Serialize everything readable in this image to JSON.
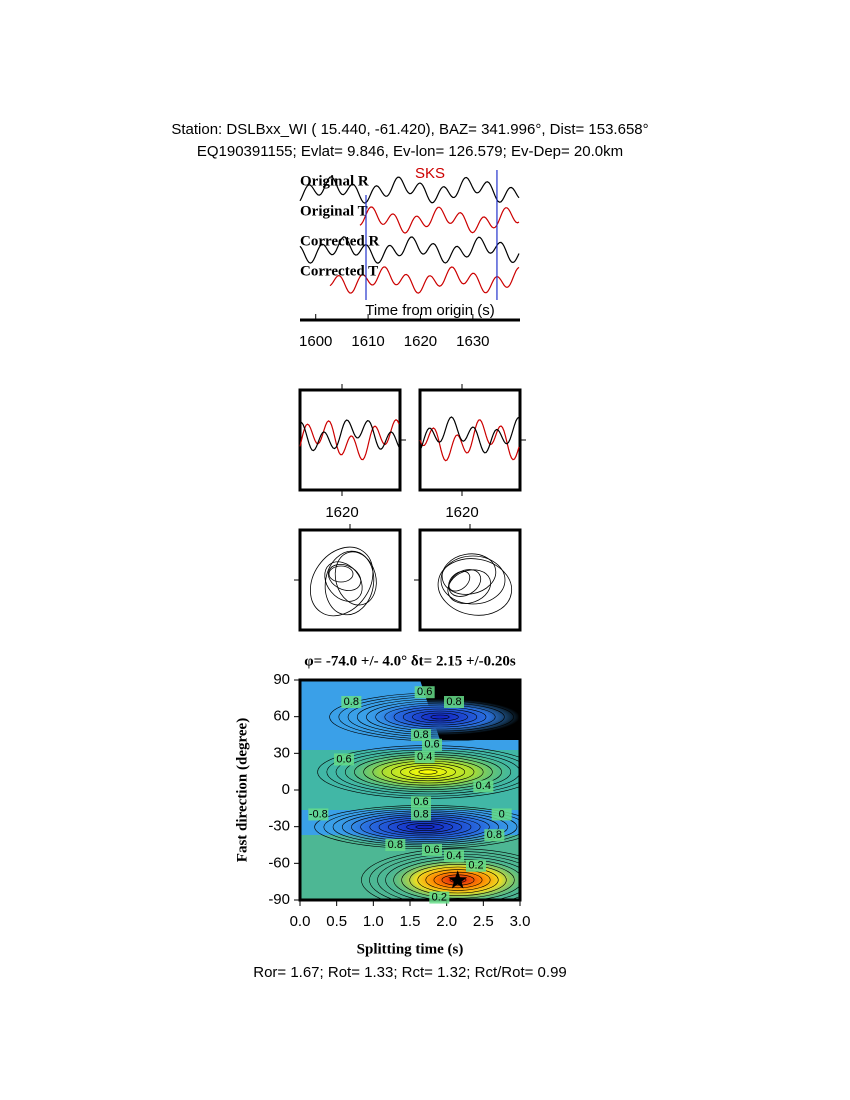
{
  "header": {
    "line1": "Station: DSLBxx_WI (  15.440,  -61.420), BAZ=  341.996°, Dist=  153.658°",
    "line2": "EQ190391155; Evlat=   9.846, Ev-lon= 126.579; Ev-Dep= 20.0km"
  },
  "chart_data": [
    {
      "type": "line",
      "phase": "SKS",
      "xlabel": "Time from origin (s)",
      "xlim": [
        1597,
        1639
      ],
      "xticks": [
        1600,
        1610,
        1620,
        1630
      ],
      "window": [
        1609.6,
        1634.6
      ],
      "series": [
        {
          "name": "Original R",
          "color": "#000000"
        },
        {
          "name": "Original T",
          "color": "#cc0000"
        },
        {
          "name": "Corrected R",
          "color": "#000000"
        },
        {
          "name": "Corrected T",
          "color": "#cc0000"
        }
      ]
    },
    {
      "type": "line",
      "xlim": [
        1611.6,
        1631.6
      ],
      "xticks": [
        1620
      ]
    },
    {
      "type": "line",
      "xlim": [
        1611.6,
        1631.6
      ],
      "xticks": [
        1620
      ]
    },
    {
      "type": "contour",
      "title": "φ= -74.0 +/- 4.0° δt= 2.15 +/-0.20s",
      "xlabel": "Splitting time (s)",
      "ylabel": "Fast direction (degree)",
      "xlim": [
        0,
        3
      ],
      "ylim": [
        -90,
        90
      ],
      "xticks": [
        {
          "value": 0,
          "label": "0.0"
        },
        0.5,
        {
          "value": 1,
          "label": "1.0"
        },
        1.5,
        {
          "value": 2,
          "label": "2.0"
        },
        2.5,
        {
          "value": 3,
          "label": "3.0"
        }
      ],
      "yticks": [
        -90,
        -60,
        -30,
        0,
        30,
        60,
        90
      ],
      "best": {
        "x": 2.15,
        "y": -74
      },
      "contour_labels": [
        {
          "x": 1.7,
          "y": 80,
          "value": 0.6
        },
        {
          "x": 2.1,
          "y": 72,
          "value": 0.8
        },
        {
          "x": 0.7,
          "y": 72,
          "value": 0.8
        },
        {
          "x": 1.65,
          "y": 45,
          "value": 0.8
        },
        {
          "x": 1.8,
          "y": 37,
          "value": 0.6
        },
        {
          "x": 1.7,
          "y": 27,
          "value": 0.4
        },
        {
          "x": 0.6,
          "y": 25,
          "value": 0.6
        },
        {
          "x": 2.5,
          "y": 3,
          "value": 0.4
        },
        {
          "x": 1.65,
          "y": -10,
          "value": 0.6
        },
        {
          "x": 1.65,
          "y": -20,
          "value": 0.8
        },
        {
          "x": 0.25,
          "y": -20,
          "value": -0.8
        },
        {
          "x": 2.75,
          "y": -20,
          "value": 0
        },
        {
          "x": 2.65,
          "y": -37,
          "value": 0.8
        },
        {
          "x": 1.3,
          "y": -45,
          "value": 0.8
        },
        {
          "x": 1.8,
          "y": -49,
          "value": 0.6
        },
        {
          "x": 2.1,
          "y": -54,
          "value": 0.4
        },
        {
          "x": 2.4,
          "y": -62,
          "value": 0.2
        },
        {
          "x": 1.9,
          "y": -88,
          "value": 0.2
        }
      ]
    }
  ],
  "footer": "Ror= 1.67; Rot= 1.33; Rct= 1.32; Rct/Rot= 0.99"
}
